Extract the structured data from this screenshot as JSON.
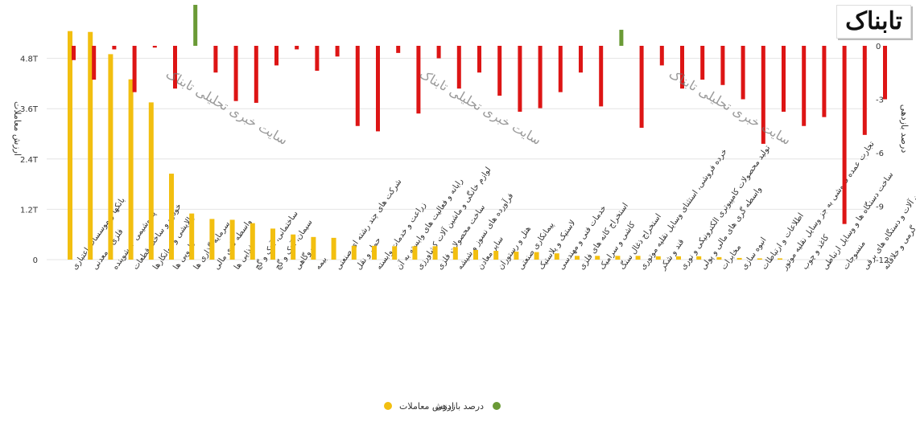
{
  "logo_text": "تابناک",
  "watermark_text": "سایت خبری تحلیلی تابناک",
  "chart_data": {
    "type": "bar",
    "left_axis": {
      "label": "ارزش معاملات",
      "ticks": [
        "0",
        "1.2T",
        "2.4T",
        "3.6T",
        "4.8T"
      ],
      "range": [
        0,
        6.0
      ]
    },
    "right_axis": {
      "label": "درصد بازدهی",
      "ticks": [
        "0",
        "-3",
        "-6",
        "-9",
        "-12"
      ],
      "range": [
        -12,
        3
      ],
      "scale_note": "reversed: 0 at top, -12 at bottom"
    },
    "categories": [
      "بانکها و موسسات اعتباری",
      "فلزی و معدنی",
      "پتروشیمی + شوینده",
      "خودرو و ساخت قطعات",
      "پالایشی و روانکارها",
      "دارویی ها",
      "سرمایه گذاری ها",
      "واسطه گری مالی",
      "غذایی ها",
      "ساختمانی، آهک و گچ",
      "سیمان، آهک و گچ",
      "نیروگاهی",
      "بیمه",
      "شرکت های چند رشته ای صنعتی",
      "حمل و نقل",
      "زراعت و خدمات وابسته",
      "رایانه و فعالیت های وابسته به آن",
      "لوازم خانگی و ماشین آلات کشاورزی",
      "ساخت محصولات فلزی",
      "فرآورده های نسوز و شیشه",
      "سایر معادن",
      "هتل و رستوران",
      "پیمانکاری صنعتی",
      "لاستیک و پلاستیک",
      "خدمات فنی و مهندسی",
      "استخراج کانه های فلزی",
      "کاشی و سرامیک",
      "استخراج ذغال سنگ",
      "خرده فروشی، استثنای وسایل نقلیه موتوری",
      "قند و شکر",
      "تولید محصولات کامپیوتری الکترونیکی و نوری",
      "واسطه گری های مالی و پولی",
      "مخابرات",
      "انبوه سازی",
      "اطلاعات و ارتباطات",
      "تجارت عمده فروشی به جز وسایل نقلیه موتور",
      "کاغذ و چوب",
      "ساخت دستگاه ها و وسایل ارتباطی",
      "منسوجات",
      "ماشین آلات و دستگاه های برقی",
      "فعالیت های هنری، سرگرمی و خلاقانه"
    ],
    "series": [
      {
        "name": "ارزش معاملات",
        "axis": "left",
        "color": "#f2bf10",
        "values": [
          5.45,
          5.43,
          4.9,
          4.3,
          3.75,
          2.05,
          1.1,
          0.97,
          0.95,
          0.87,
          0.74,
          0.6,
          0.54,
          0.52,
          0.33,
          0.33,
          0.32,
          0.32,
          0.32,
          0.3,
          0.23,
          0.21,
          0.19,
          0.18,
          0.15,
          0.09,
          0.09,
          0.09,
          0.09,
          0.08,
          0.08,
          0.08,
          0.06,
          0.04,
          0.03,
          0.03,
          0,
          0,
          0,
          0,
          0
        ]
      },
      {
        "name": "درصد بازدهی",
        "axis": "right",
        "color_negative": "#dd1515",
        "color_positive": "#6a9a36",
        "values": [
          -0.8,
          -1.9,
          -0.2,
          -2.6,
          -0.1,
          -2.4,
          2.3,
          -1.5,
          -3.1,
          -3.2,
          -1.1,
          -0.2,
          -1.4,
          -0.6,
          -4.5,
          -4.8,
          -0.4,
          -3.8,
          -0.7,
          -2.4,
          -1.5,
          -2.8,
          -3.7,
          -3.5,
          -2.6,
          -1.5,
          -3.4,
          0.9,
          -4.6,
          -1.1,
          -2.4,
          -1.9,
          -2.2,
          -3.0,
          -5.5,
          -3.7,
          -4.5,
          -4.0,
          -10.0,
          -5.0,
          -3.0
        ]
      }
    ],
    "legend": [
      {
        "name": "ارزش معاملات",
        "color": "#f2bf10"
      },
      {
        "name": "درصد بازدهی",
        "color": "#6a9a36"
      }
    ],
    "legend_position": "bottom-center",
    "grid": true
  }
}
